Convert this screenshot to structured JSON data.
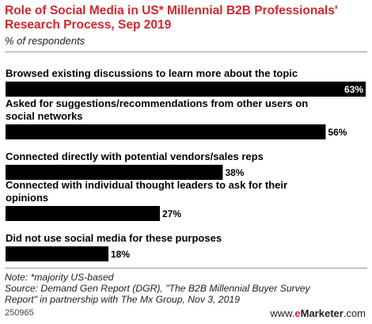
{
  "header": {
    "title": "Role of Social Media in US* Millennial B2B Professionals' Research Process, Sep 2019",
    "subtitle": "% of respondents"
  },
  "chart_data": {
    "type": "bar",
    "orientation": "horizontal",
    "categories": [
      [
        "Browsed existing discussions to learn more about the topic"
      ],
      [
        "Asked for suggestions/recommendations from other users on",
        "social networks"
      ],
      [
        "Connected directly with potential vendors/sales reps"
      ],
      [
        "Connected with individual thought leaders to ask for their",
        "opinions"
      ],
      [
        "Did not use social media for these purposes"
      ]
    ],
    "values": [
      63,
      56,
      38,
      27,
      18
    ],
    "value_labels": [
      "63%",
      "56%",
      "38%",
      "27%",
      "18%"
    ],
    "bar_color": "#000000",
    "grid": false
  },
  "footer": {
    "note": "Note: *majority US-based",
    "source_line1": "Source: Demand Gen Report (DGR), \"The B2B Millennial Buyer Survey",
    "source_line2": "Report\" in partnership with The Mx Group, Nov 3, 2019",
    "chart_id": "250965",
    "brand_prefix": "www.",
    "brand_e": "e",
    "brand_name": "Marketer",
    "brand_suffix": ".com"
  }
}
